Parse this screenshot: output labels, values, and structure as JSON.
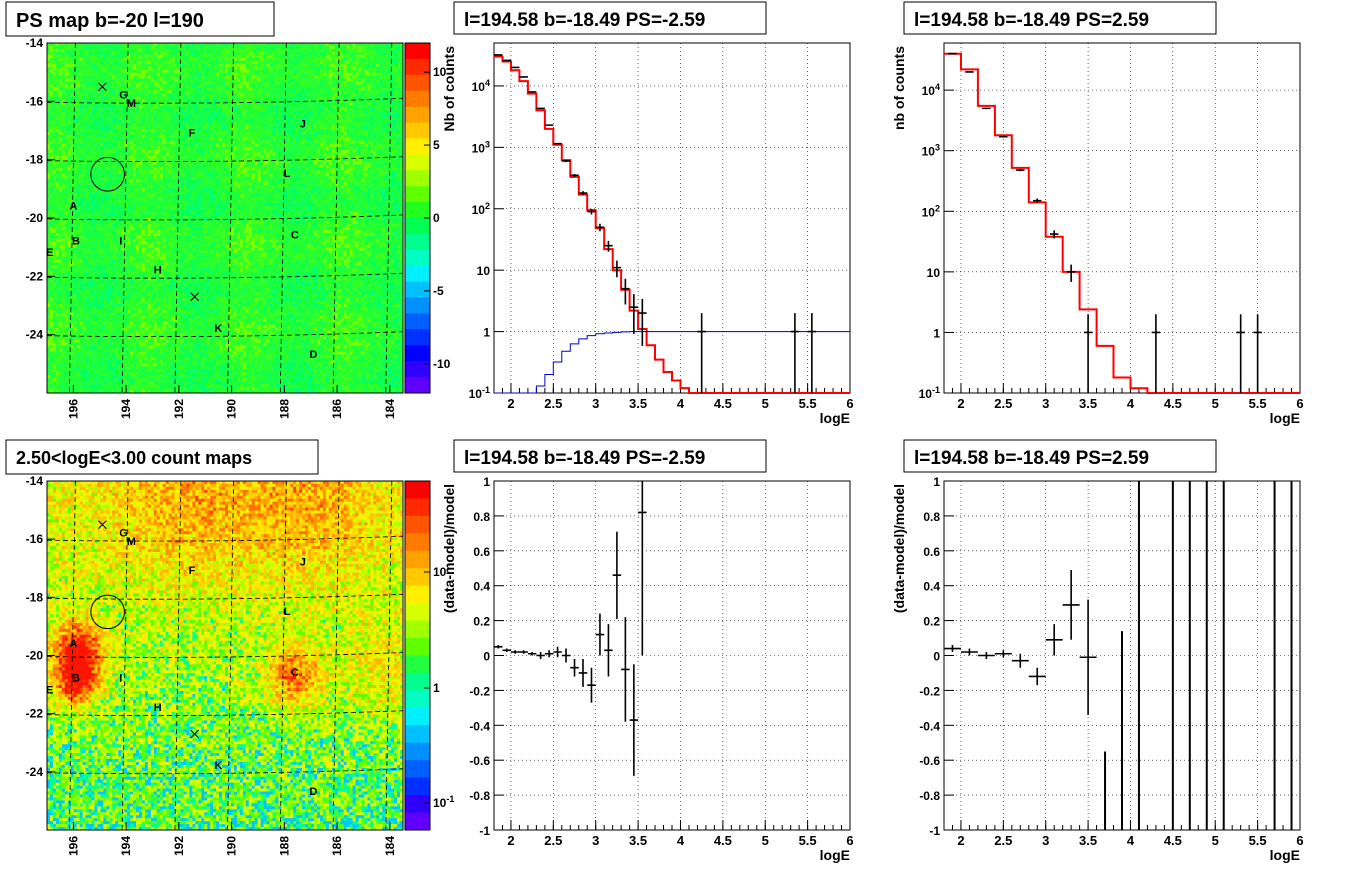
{
  "panels": {
    "map_ps": {
      "title": "PS map b=-20 l=190"
    },
    "map_counts": {
      "title": "2.50<logE<3.00 count maps"
    },
    "spec_neg": {
      "title": "l=194.58 b=-18.49 PS=-2.59"
    },
    "spec_pos": {
      "title": "l=194.58 b=-18.49 PS=2.59"
    },
    "res_neg": {
      "title": "l=194.58 b=-18.49 PS=-2.59"
    },
    "res_pos": {
      "title": "l=194.58 b=-18.49 PS=2.59"
    }
  },
  "maps": {
    "x_range": [
      197.0,
      183.5
    ],
    "y_range": [
      -26.0,
      -14.0
    ],
    "x_ticks": [
      196,
      194,
      192,
      190,
      188,
      186,
      184
    ],
    "y_ticks": [
      -14,
      -16,
      -18,
      -20,
      -22,
      -24
    ],
    "source_labels": [
      {
        "text": "G",
        "l": 194.1,
        "b": -15.9
      },
      {
        "text": "M",
        "l": 193.8,
        "b": -16.2
      },
      {
        "text": "F",
        "l": 191.5,
        "b": -17.2
      },
      {
        "text": "J",
        "l": 187.3,
        "b": -16.9
      },
      {
        "text": "L",
        "l": 187.9,
        "b": -18.6
      },
      {
        "text": "A",
        "l": 196.0,
        "b": -19.7
      },
      {
        "text": "B",
        "l": 195.9,
        "b": -20.9
      },
      {
        "text": "E",
        "l": 196.9,
        "b": -21.3
      },
      {
        "text": "I",
        "l": 194.2,
        "b": -20.9
      },
      {
        "text": "C",
        "l": 187.6,
        "b": -20.7
      },
      {
        "text": "H",
        "l": 192.8,
        "b": -21.9
      },
      {
        "text": "K",
        "l": 190.5,
        "b": -23.9
      },
      {
        "text": "D",
        "l": 186.9,
        "b": -24.8
      }
    ],
    "crosses": [
      {
        "l": 194.9,
        "b": -15.5
      },
      {
        "l": 191.4,
        "b": -22.7
      }
    ],
    "circle": {
      "l": 194.7,
      "b": -18.5,
      "radius_deg": 0.55
    },
    "ps_colorbar": {
      "ticks": [
        10,
        5,
        0,
        -5,
        -10
      ],
      "range": [
        -12,
        12
      ]
    },
    "count_colorbar": {
      "ticks": [
        "10",
        "1",
        "10-1"
      ],
      "log_range": [
        -1.4,
        1.6
      ]
    }
  },
  "chart_data": [
    {
      "type": "line",
      "title": "l=194.58 b=-18.49 PS=-2.59",
      "xlabel": "logE",
      "ylabel": "Nb of counts",
      "xlim": [
        1.8,
        6.0
      ],
      "ylim": [
        0.1,
        50000
      ],
      "yscale": "log",
      "x_ticks": [
        "2",
        "2.5",
        "3",
        "3.5",
        "4",
        "4.5",
        "5",
        "5.5",
        "6"
      ],
      "y_ticks": [
        "10-1",
        "1",
        "10",
        "102",
        "103",
        "104"
      ],
      "grid": true,
      "series": [
        {
          "color": "#ff0000",
          "bin_edges": [
            1.8,
            1.9,
            2.0,
            2.1,
            2.2,
            2.3,
            2.4,
            2.5,
            2.6,
            2.7,
            2.8,
            2.9,
            3.0,
            3.1,
            3.2,
            3.3,
            3.4,
            3.5,
            3.6,
            3.7,
            3.8,
            3.9,
            4.0,
            4.1,
            6.0
          ],
          "values": [
            30000,
            25000,
            18000,
            12000,
            7500,
            4000,
            2000,
            1100,
            620,
            330,
            170,
            95,
            48,
            22,
            10,
            4.8,
            2.2,
            1.1,
            0.6,
            0.35,
            0.22,
            0.16,
            0.12,
            0.1
          ]
        },
        {
          "color": "#0000cc",
          "bin_edges": [
            1.8,
            2.3,
            2.4,
            2.5,
            2.6,
            2.7,
            2.8,
            2.9,
            3.0,
            3.1,
            3.2,
            3.3,
            3.4,
            3.5,
            6.0
          ],
          "values": [
            0.1,
            0.13,
            0.2,
            0.32,
            0.48,
            0.63,
            0.76,
            0.86,
            0.92,
            0.95,
            0.97,
            0.99,
            1.0,
            1.0
          ]
        },
        {
          "color": "#000000",
          "points": [
            [
              1.85,
              32000
            ],
            [
              1.95,
              26000
            ],
            [
              2.05,
              20000
            ],
            [
              2.15,
              14000
            ],
            [
              2.25,
              8000
            ],
            [
              2.35,
              4300
            ],
            [
              2.45,
              2300
            ],
            [
              2.55,
              1150
            ],
            [
              2.65,
              600
            ],
            [
              2.75,
              350
            ],
            [
              2.85,
              180
            ],
            [
              2.95,
              90
            ],
            [
              3.05,
              50
            ],
            [
              3.15,
              25
            ],
            [
              3.25,
              11
            ],
            [
              3.35,
              5
            ],
            [
              3.45,
              2.5
            ],
            [
              3.55,
              2
            ],
            [
              4.25,
              1
            ],
            [
              5.35,
              1
            ],
            [
              5.55,
              1
            ]
          ]
        }
      ]
    },
    {
      "type": "line",
      "title": "l=194.58 b=-18.49 PS=2.59",
      "xlabel": "logE",
      "ylabel": "nb of counts",
      "xlim": [
        1.8,
        6.0
      ],
      "ylim": [
        0.1,
        60000
      ],
      "yscale": "log",
      "x_ticks": [
        "2",
        "2.5",
        "3",
        "3.5",
        "4",
        "4.5",
        "5",
        "5.5",
        "6"
      ],
      "y_ticks": [
        "10-1",
        "1",
        "10",
        "102",
        "103",
        "104"
      ],
      "grid": true,
      "series": [
        {
          "color": "#ff0000",
          "bin_edges": [
            1.8,
            2.0,
            2.2,
            2.4,
            2.6,
            2.8,
            3.0,
            3.2,
            3.4,
            3.6,
            3.8,
            4.0,
            4.2,
            6.0
          ],
          "values": [
            40000,
            22000,
            5500,
            1800,
            520,
            140,
            38,
            10,
            2.4,
            0.6,
            0.18,
            0.12,
            0.1
          ]
        },
        {
          "color": "#000000",
          "points": [
            [
              1.9,
              40000
            ],
            [
              2.1,
              20000
            ],
            [
              2.3,
              5000
            ],
            [
              2.5,
              1700
            ],
            [
              2.7,
              480
            ],
            [
              2.9,
              150
            ],
            [
              3.1,
              42
            ],
            [
              3.3,
              10
            ],
            [
              3.5,
              1
            ],
            [
              4.3,
              1
            ],
            [
              5.3,
              1
            ],
            [
              5.5,
              1
            ]
          ]
        }
      ]
    },
    {
      "type": "scatter",
      "title": "l=194.58 b=-18.49 PS=-2.59",
      "xlabel": "logE",
      "ylabel": "(data-model)/model",
      "xlim": [
        1.8,
        6.0
      ],
      "ylim": [
        -1,
        1
      ],
      "x_ticks": [
        "2",
        "2.5",
        "3",
        "3.5",
        "4",
        "4.5",
        "5",
        "5.5",
        "6"
      ],
      "y_ticks": [
        "-1",
        "-0.8",
        "-0.6",
        "-0.4",
        "-0.2",
        "0",
        "0.2",
        "0.4",
        "0.6",
        "0.8",
        "1"
      ],
      "grid": true,
      "points": [
        [
          1.85,
          0.05
        ],
        [
          1.95,
          0.03
        ],
        [
          2.05,
          0.02
        ],
        [
          2.15,
          0.02
        ],
        [
          2.25,
          0.01
        ],
        [
          2.35,
          0.0
        ],
        [
          2.45,
          0.01
        ],
        [
          2.55,
          0.02
        ],
        [
          2.65,
          0.0
        ],
        [
          2.75,
          -0.07
        ],
        [
          2.85,
          -0.1
        ],
        [
          2.95,
          -0.17
        ],
        [
          3.05,
          0.12
        ],
        [
          3.15,
          0.03
        ],
        [
          3.25,
          0.46
        ],
        [
          3.35,
          -0.08
        ],
        [
          3.45,
          -0.37
        ],
        [
          3.55,
          0.82
        ]
      ],
      "errors": [
        0.01,
        0.01,
        0.01,
        0.01,
        0.01,
        0.02,
        0.02,
        0.03,
        0.04,
        0.05,
        0.08,
        0.1,
        0.12,
        0.15,
        0.25,
        0.3,
        0.32,
        0.82
      ]
    },
    {
      "type": "scatter",
      "title": "l=194.58 b=-18.49 PS=2.59",
      "xlabel": "logE",
      "ylabel": "(data-model)/model",
      "xlim": [
        1.8,
        6.0
      ],
      "ylim": [
        -1,
        1
      ],
      "x_ticks": [
        "2",
        "2.5",
        "3",
        "3.5",
        "4",
        "4.5",
        "5",
        "5.5",
        "6"
      ],
      "y_ticks": [
        "-1",
        "-0.8",
        "-0.6",
        "-0.4",
        "-0.2",
        "0",
        "0.2",
        "0.4",
        "0.6",
        "0.8",
        "1"
      ],
      "grid": true,
      "points": [
        [
          1.9,
          0.04
        ],
        [
          2.1,
          0.02
        ],
        [
          2.3,
          0.0
        ],
        [
          2.5,
          0.01
        ],
        [
          2.7,
          -0.03
        ],
        [
          2.9,
          -0.12
        ],
        [
          3.1,
          0.09
        ],
        [
          3.3,
          0.29
        ],
        [
          3.5,
          -0.01
        ]
      ],
      "errors": [
        0.02,
        0.02,
        0.02,
        0.02,
        0.04,
        0.05,
        0.09,
        0.2,
        0.33
      ],
      "vertical_bars": [
        [
          3.7,
          -1,
          -0.55
        ],
        [
          3.9,
          -1,
          0.14
        ],
        [
          4.1,
          -1,
          1
        ],
        [
          4.5,
          -1,
          1
        ],
        [
          4.7,
          -1,
          1
        ],
        [
          4.9,
          -1,
          1
        ],
        [
          5.1,
          -1,
          1
        ],
        [
          5.7,
          -1,
          1
        ],
        [
          5.9,
          -1,
          1
        ]
      ]
    }
  ]
}
